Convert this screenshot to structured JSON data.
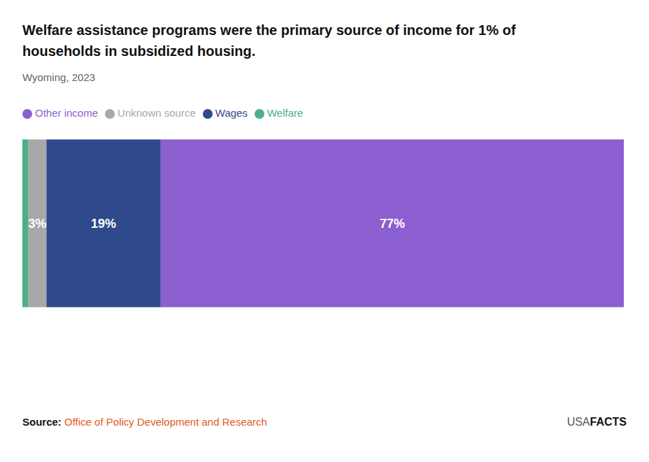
{
  "chart_data": {
    "type": "bar",
    "orientation": "horizontal",
    "stacked": true,
    "title": "Welfare assistance programs were the primary source of income for 1% of\nhouseholds in subsidized housing.",
    "subtitle": "Wyoming, 2023",
    "categories": [
      null
    ],
    "series": [
      {
        "name": "Welfare",
        "color": "#4caf86",
        "values": [
          1
        ]
      },
      {
        "name": "Unknown source",
        "color": "#a8a8a8",
        "values": [
          3
        ],
        "value_labels": [
          "3%"
        ]
      },
      {
        "name": "Wages",
        "color": "#2e4a8c",
        "values": [
          19
        ],
        "value_labels": [
          "19%"
        ]
      },
      {
        "name": "Other income",
        "color": "#8b5fcf",
        "values": [
          77
        ],
        "value_labels": [
          "77%"
        ]
      }
    ],
    "xlim": [
      0,
      100
    ],
    "data_labels": true,
    "tick_labels": false,
    "grid": false,
    "legend": "upper left",
    "annotations": [
      "Source:",
      "Office of Policy Development and Research",
      "USA",
      "FACTS"
    ]
  }
}
